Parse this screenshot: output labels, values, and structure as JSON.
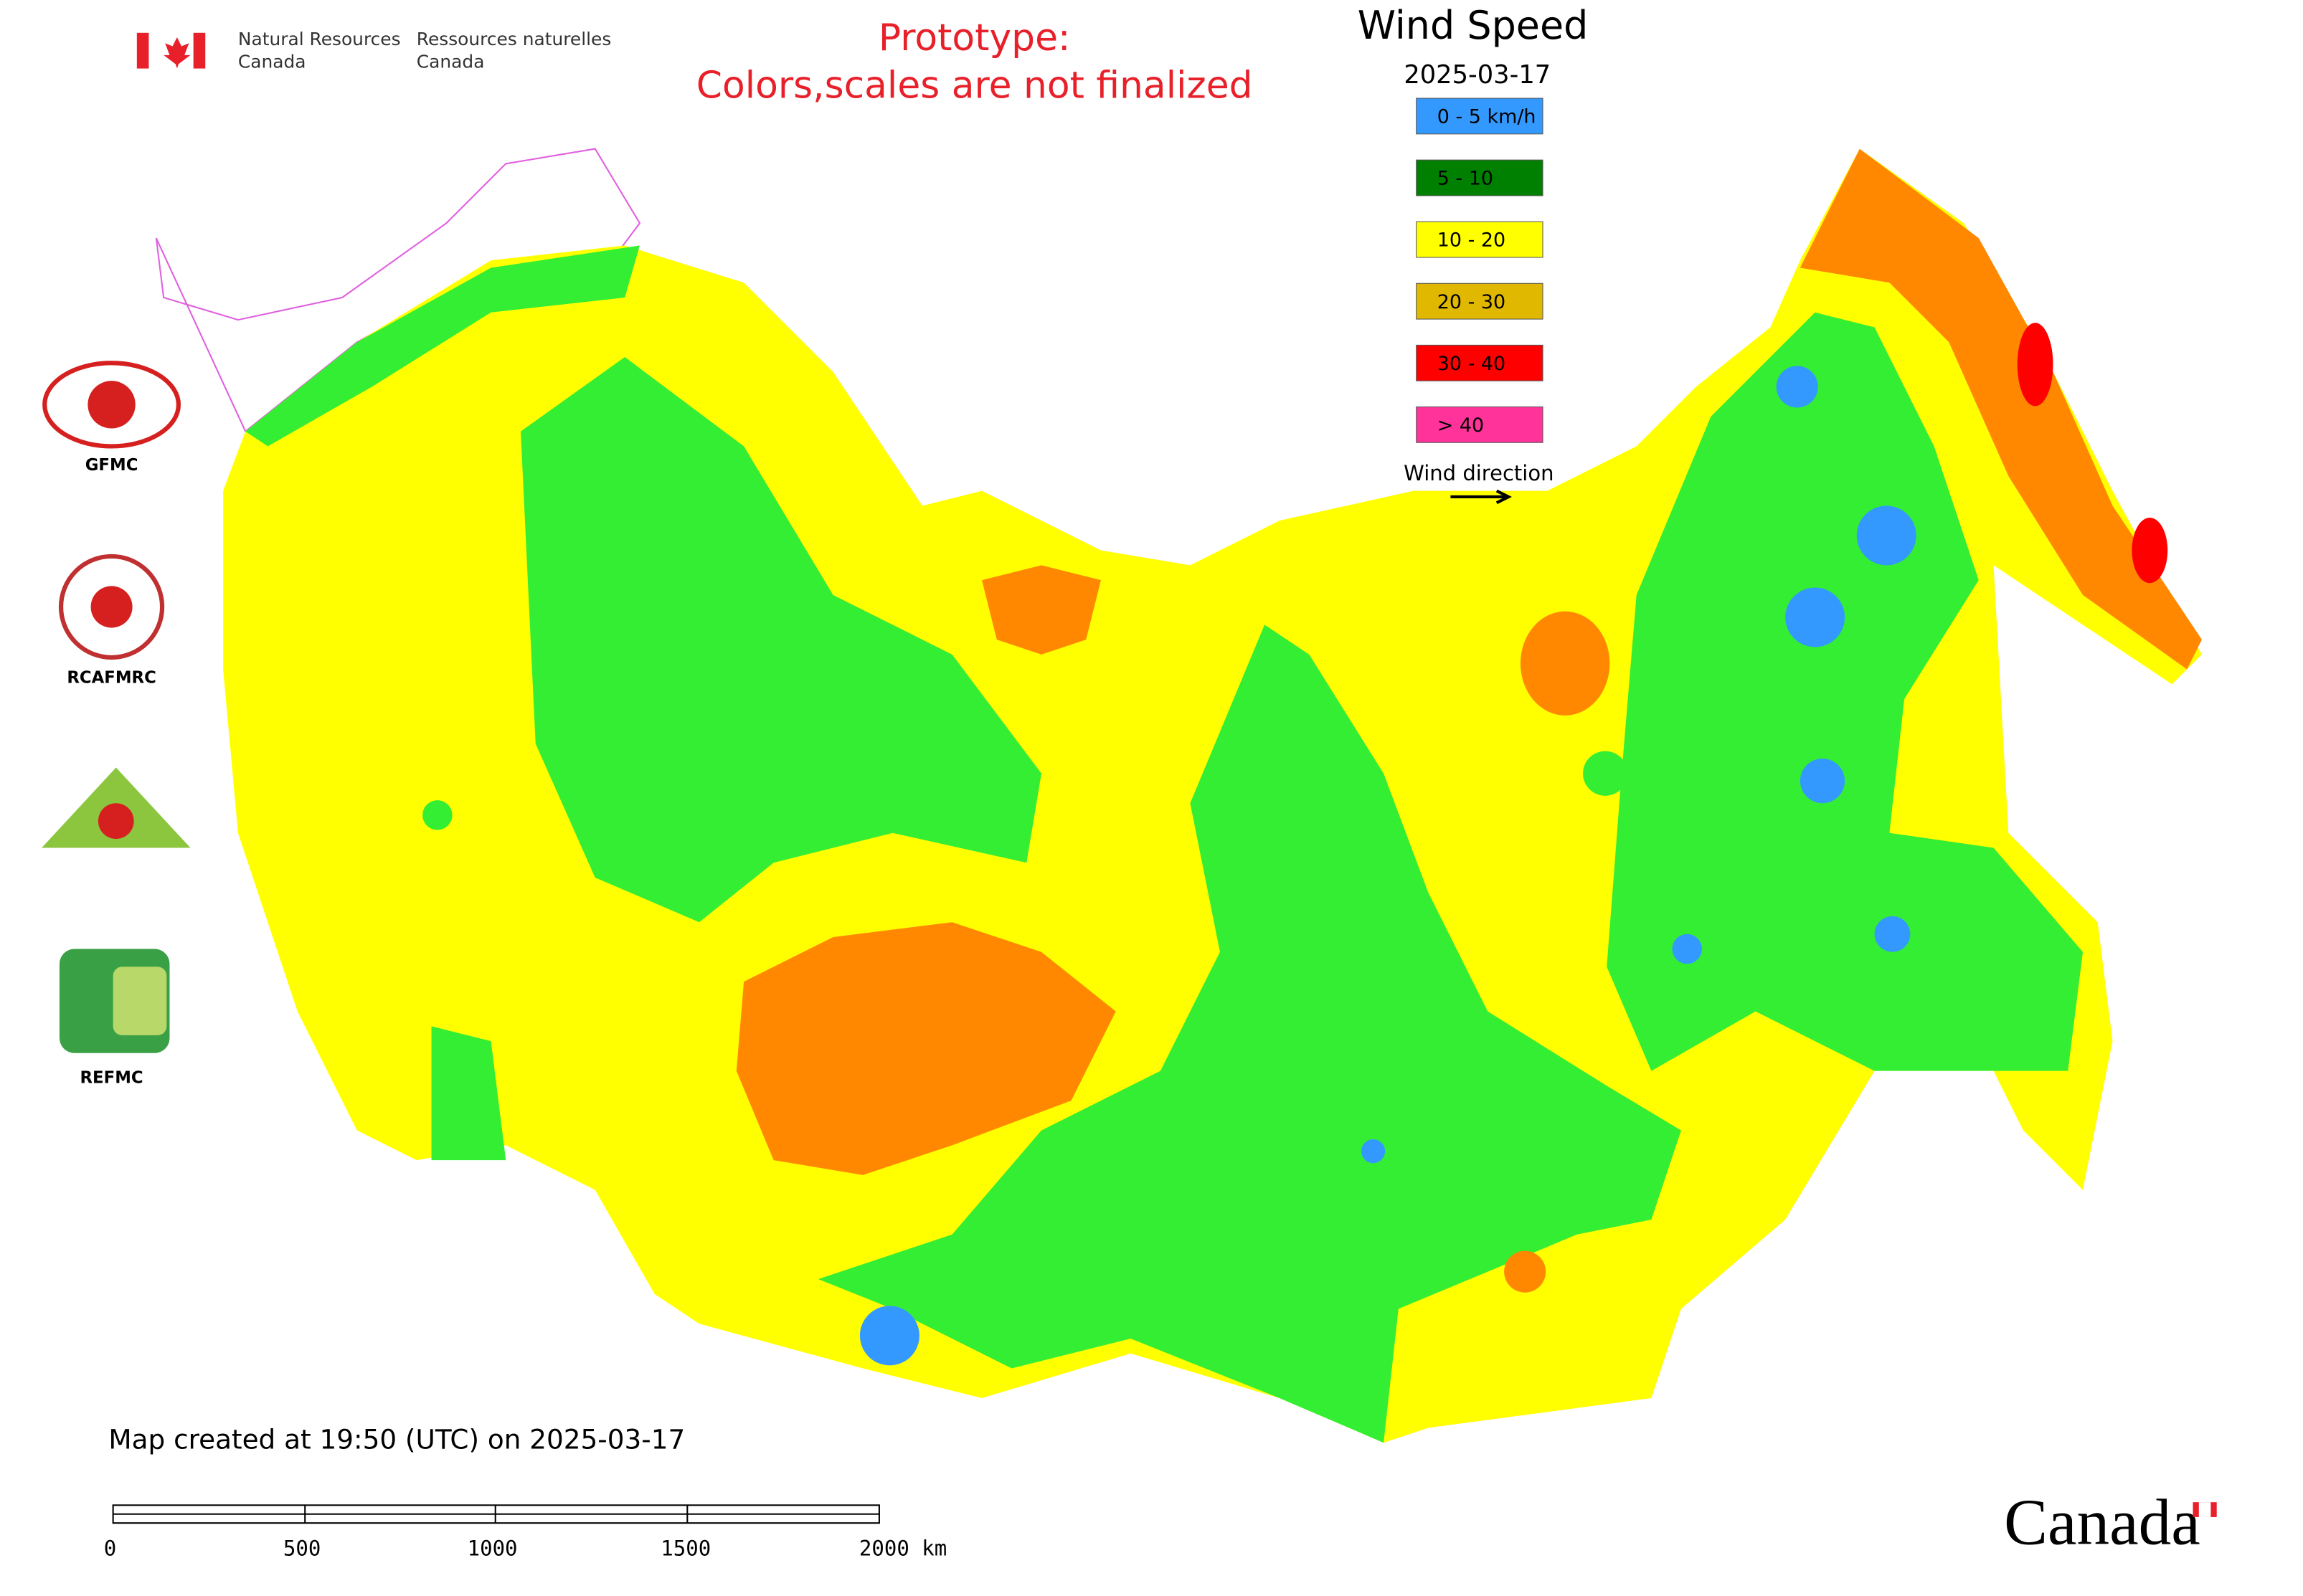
{
  "header": {
    "dept_en_1": "Natural Resources",
    "dept_en_2": "Canada",
    "dept_fr_1": "Ressources naturelles",
    "dept_fr_2": "Canada"
  },
  "notice": {
    "line1": "Prototype:",
    "line2": "Colors,scales are not finalized"
  },
  "legend": {
    "title": "Wind Speed",
    "date": "2025-03-17",
    "items": [
      {
        "label": "0 - 5 km/h",
        "color": "#3399ff"
      },
      {
        "label": "5 - 10",
        "color": "#008000"
      },
      {
        "label": "10 - 20",
        "color": "#ffff00"
      },
      {
        "label": "20 - 30",
        "color": "#e0b800"
      },
      {
        "label": "30 - 40",
        "color": "#ff0000"
      },
      {
        "label": "> 40",
        "color": "#ff3399"
      }
    ],
    "direction_label": "Wind direction"
  },
  "logos": [
    "GFMC",
    "RCAFMRC",
    "REFMC"
  ],
  "footer": {
    "created": "Map created at 19:50 (UTC) on 2025-03-17",
    "scale_labels": [
      "0",
      "500",
      "1000",
      "1500",
      "2000 km"
    ],
    "wordmark": "Canada"
  }
}
